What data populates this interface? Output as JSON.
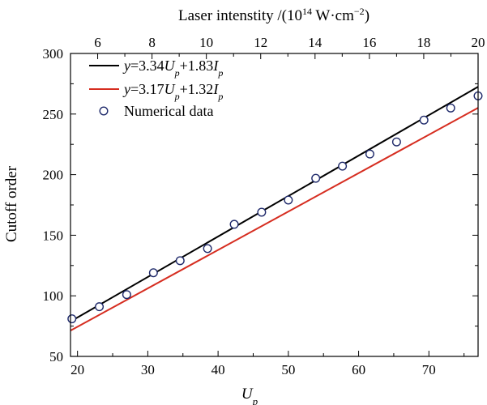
{
  "chart_data": {
    "type": "scatter",
    "xlabel": {
      "main": "U",
      "sub": "p"
    },
    "top_xlabel": {
      "pre": "Laser intenstity /(10",
      "sup1": "14",
      "mid": " W·cm",
      "sup2": "−2",
      "post": ")"
    },
    "ylabel": "Cutoff order",
    "xlim": [
      19,
      77
    ],
    "ylim": [
      50,
      300
    ],
    "top_xlim": [
      5,
      20
    ],
    "x_ticks": [
      20,
      30,
      40,
      50,
      60,
      70
    ],
    "y_ticks": [
      50,
      100,
      150,
      200,
      250,
      300
    ],
    "top_ticks": [
      6,
      8,
      10,
      12,
      14,
      16,
      18,
      20
    ],
    "legend_position": "top-left",
    "series": [
      {
        "name": "y=3.34Up+1.83Ip",
        "legend": {
          "y": "y",
          "eq": "=3.34",
          "u": "U",
          "sub1": "p",
          "plus": "+1.83",
          "i": "I",
          "sub2": "p"
        },
        "kind": "line",
        "color": "#000000",
        "x": [
          19,
          77
        ],
        "y": [
          78.8,
          272.5
        ]
      },
      {
        "name": "y=3.17Up+1.32Ip",
        "legend": {
          "y": "y",
          "eq": "=3.17",
          "u": "U",
          "sub1": "p",
          "plus": "+1.32",
          "i": "I",
          "sub2": "p"
        },
        "kind": "line",
        "color": "#d62d20",
        "x": [
          19,
          77
        ],
        "y": [
          71.3,
          255.1
        ]
      },
      {
        "name": "Numerical data",
        "legend_text": "Numerical data",
        "kind": "scatter",
        "color": "#1f2a6b",
        "x": [
          19.2,
          23.1,
          27.0,
          30.8,
          34.6,
          38.5,
          42.3,
          46.2,
          50.0,
          53.9,
          57.7,
          61.6,
          65.4,
          69.3,
          73.1,
          77.0
        ],
        "y": [
          81,
          91,
          101,
          119,
          129,
          139,
          159,
          169,
          179,
          197,
          207,
          217,
          227,
          245,
          255,
          265
        ]
      }
    ]
  }
}
